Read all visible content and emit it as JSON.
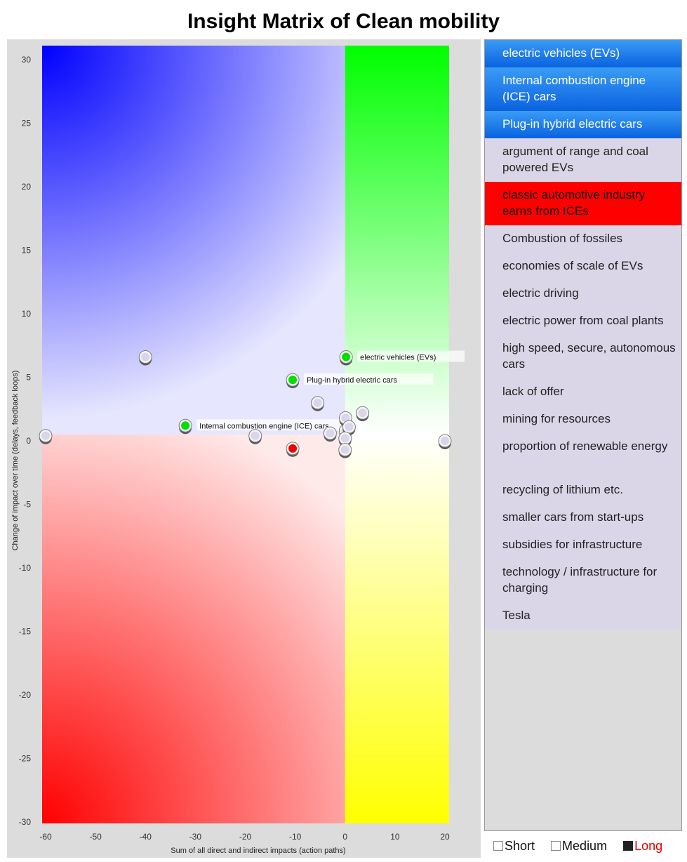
{
  "title": "Insight Matrix of Clean mobility",
  "colors": {
    "blue": "#0000ff",
    "green": "#00ff00",
    "red": "#ff0000",
    "yellow": "#ffff00",
    "point_default": "#d8d5ec",
    "point_green": "#00e000",
    "point_red": "#ee0000"
  },
  "chart_data": {
    "type": "scatter",
    "xlabel": "Sum of all direct and indirect impacts (action paths)",
    "ylabel": "Change of impact over time (delays, feedback loops)",
    "xlim": [
      -60,
      20
    ],
    "ylim": [
      -30,
      30
    ],
    "xticks": [
      -60,
      -50,
      -40,
      -30,
      -20,
      -10,
      0,
      10,
      20
    ],
    "yticks": [
      30,
      25,
      20,
      15,
      10,
      5,
      0,
      -5,
      -10,
      -15,
      -20,
      -25,
      -30
    ],
    "grid": false,
    "quadrants": {
      "top_left": "blue",
      "top_right": "green",
      "bottom_left": "red",
      "bottom_right": "yellow"
    },
    "points": [
      {
        "x": 0.2,
        "y": 6.6,
        "color": "green",
        "label": "electric vehicles (EVs)"
      },
      {
        "x": -10.5,
        "y": 4.8,
        "color": "green",
        "label": "Plug-in hybrid electric cars"
      },
      {
        "x": -32,
        "y": 1.2,
        "color": "green",
        "label": "Internal combustion engine (ICE) cars"
      },
      {
        "x": -10.5,
        "y": -0.6,
        "color": "red",
        "label": ""
      },
      {
        "x": -40,
        "y": 6.6,
        "color": "default",
        "label": ""
      },
      {
        "x": -60,
        "y": 0.4,
        "color": "default",
        "label": ""
      },
      {
        "x": -18,
        "y": 0.4,
        "color": "default",
        "label": ""
      },
      {
        "x": -5.5,
        "y": 3.0,
        "color": "default",
        "label": ""
      },
      {
        "x": -3,
        "y": 0.6,
        "color": "default",
        "label": ""
      },
      {
        "x": 0.1,
        "y": 1.8,
        "color": "default",
        "label": ""
      },
      {
        "x": 0.1,
        "y": 0.8,
        "color": "default",
        "label": ""
      },
      {
        "x": 0.8,
        "y": 1.1,
        "color": "default",
        "label": ""
      },
      {
        "x": 0.0,
        "y": 0.2,
        "color": "default",
        "label": ""
      },
      {
        "x": 0.0,
        "y": -0.7,
        "color": "default",
        "label": ""
      },
      {
        "x": 3.5,
        "y": 2.2,
        "color": "default",
        "label": ""
      },
      {
        "x": 20,
        "y": 0.0,
        "color": "default",
        "label": ""
      }
    ]
  },
  "sidebar": {
    "items": [
      {
        "label": "electric vehicles (EVs)",
        "style": "blue",
        "lines": 1
      },
      {
        "label": "Internal combustion engine (ICE) cars",
        "style": "blue",
        "lines": 2
      },
      {
        "label": "Plug-in hybrid electric cars",
        "style": "blue",
        "lines": 1
      },
      {
        "label": "argument of range and coal powered EVs",
        "style": "plain",
        "lines": 2
      },
      {
        "label": "classic automotive industry earns from ICEs",
        "style": "red",
        "lines": 2
      },
      {
        "label": "Combustion of fossiles",
        "style": "plain",
        "lines": 1
      },
      {
        "label": "economies of scale of EVs",
        "style": "plain",
        "lines": 1
      },
      {
        "label": "electric driving",
        "style": "plain",
        "lines": 1
      },
      {
        "label": "electric power from coal plants",
        "style": "plain",
        "lines": 1
      },
      {
        "label": "high speed, secure, autonomous cars",
        "style": "plain",
        "lines": 2
      },
      {
        "label": "lack of offer",
        "style": "plain",
        "lines": 1
      },
      {
        "label": "mining for resources",
        "style": "plain",
        "lines": 1
      },
      {
        "label": "proportion of renewable energy",
        "style": "plain",
        "lines": 2
      },
      {
        "label": "recycling of lithium etc.",
        "style": "plain",
        "lines": 1
      },
      {
        "label": "smaller cars from start-ups",
        "style": "plain",
        "lines": 1
      },
      {
        "label": "subsidies for infrastructure",
        "style": "plain",
        "lines": 1
      },
      {
        "label": "technology / infrastructure for charging",
        "style": "plain",
        "lines": 2
      },
      {
        "label": "Tesla",
        "style": "plain",
        "lines": 1
      }
    ]
  },
  "legend": {
    "short_label": "Short",
    "medium_label": "Medium",
    "long_label": "Long",
    "selected": "Long"
  }
}
